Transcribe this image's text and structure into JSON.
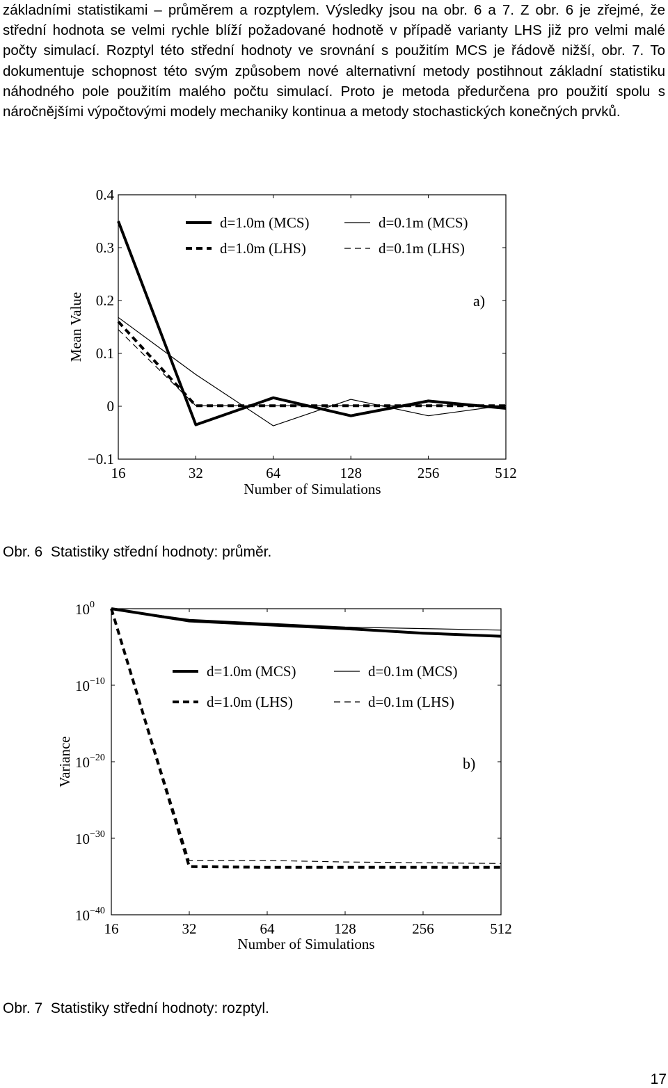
{
  "text": {
    "paragraph": "základními statistikami – průměrem a rozptylem. Výsledky jsou na obr. 6 a 7. Z obr. 6 je zřejmé, že střední hodnota se velmi rychle blíží požadované hodnotě v případě varianty LHS již pro velmi malé počty simulací. Rozptyl této střední hodnoty ve srovnání s použitím MCS je řádově nižší, obr. 7. To dokumentuje schopnost této svým způsobem nové alternativní metody postihnout základní statistiku náhodného pole použitím malého počtu simulací. Proto je metoda předurčena pro použití spolu s náročnějšími výpočtovými modely mechaniky kontinua a metody stochastických konečných prvků.",
    "caption1": "Obr. 6  Statistiky střední hodnoty: průměr.",
    "caption2": "Obr. 7  Statistiky střední hodnoty: rozptyl.",
    "page_number": "17"
  },
  "chart_data": [
    {
      "type": "line",
      "panel_label": "a)",
      "xlabel": "Number of Simulations",
      "ylabel": "Mean Value",
      "categories": [
        "16",
        "32",
        "64",
        "128",
        "256",
        "512"
      ],
      "ylim": [
        -0.1,
        0.4
      ],
      "yticks": [
        "−0.1",
        "0",
        "0.1",
        "0.2",
        "0.3",
        "0.4"
      ],
      "legend_position": "top",
      "series": [
        {
          "name": "d=1.0m (MCS)",
          "style": "thick-solid",
          "values": [
            0.35,
            -0.035,
            0.016,
            -0.018,
            0.01,
            -0.004
          ]
        },
        {
          "name": "d=0.1m (MCS)",
          "style": "thin-solid",
          "values": [
            0.168,
            0.06,
            -0.037,
            0.013,
            -0.018,
            0.002
          ]
        },
        {
          "name": "d=1.0m (LHS)",
          "style": "thick-dashed",
          "values": [
            0.16,
            0.001,
            0.001,
            0.001,
            0.001,
            0.001
          ]
        },
        {
          "name": "d=0.1m (LHS)",
          "style": "thin-dashed",
          "values": [
            0.145,
            0.001,
            0.001,
            0.001,
            0.001,
            0.001
          ]
        }
      ]
    },
    {
      "type": "line",
      "panel_label": "b)",
      "xlabel": "Number of Simulations",
      "ylabel": "Variance",
      "categories": [
        "16",
        "32",
        "64",
        "128",
        "256",
        "512"
      ],
      "yscale": "log",
      "ylim_exponent": [
        -40,
        0
      ],
      "yticks": [
        {
          "base": "10",
          "exp": "0"
        },
        {
          "base": "10",
          "exp": "−10"
        },
        {
          "base": "10",
          "exp": "−20"
        },
        {
          "base": "10",
          "exp": "−30"
        },
        {
          "base": "10",
          "exp": "−40"
        }
      ],
      "legend_position": "top",
      "series": [
        {
          "name": "d=1.0m (MCS)",
          "style": "thick-solid",
          "log10_values": [
            0,
            -1.6,
            -2.1,
            -2.6,
            -3.2,
            -3.6
          ]
        },
        {
          "name": "d=0.1m (MCS)",
          "style": "thin-solid",
          "log10_values": [
            0,
            -1.4,
            -1.9,
            -2.4,
            -2.6,
            -2.8
          ]
        },
        {
          "name": "d=1.0m (LHS)",
          "style": "thick-dashed",
          "log10_values": [
            0,
            -33.7,
            -33.8,
            -33.8,
            -33.8,
            -33.8
          ]
        },
        {
          "name": "d=0.1m (LHS)",
          "style": "thin-dashed",
          "log10_values": [
            0,
            -32.9,
            -32.9,
            -33.1,
            -33.2,
            -33.3
          ]
        }
      ]
    }
  ]
}
